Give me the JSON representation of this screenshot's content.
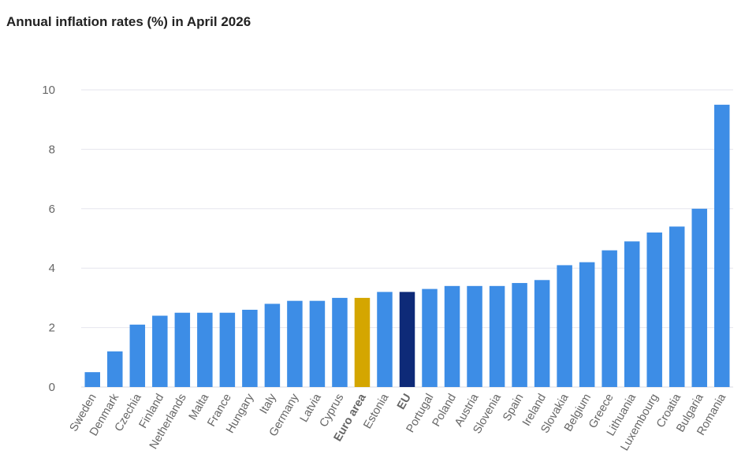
{
  "title": "Annual inflation rates (%) in April 2026",
  "colors": {
    "default": "#3d8de6",
    "euro_area": "#d4a600",
    "eu": "#0e2a78",
    "grid": "#e6e6ee",
    "axis_text": "#666666"
  },
  "chart_data": {
    "type": "bar",
    "title": "Annual inflation rates (%) in April 2026",
    "xlabel": "",
    "ylabel": "",
    "ylim": [
      0,
      10
    ],
    "yticks": [
      0,
      2,
      4,
      6,
      8,
      10
    ],
    "grid": true,
    "categories": [
      "Sweden",
      "Denmark",
      "Czechia",
      "Finland",
      "Netherlands",
      "Malta",
      "France",
      "Hungary",
      "Italy",
      "Germany",
      "Latvia",
      "Cyprus",
      "Euro area",
      "Estonia",
      "EU",
      "Portugal",
      "Poland",
      "Austria",
      "Slovenia",
      "Spain",
      "Ireland",
      "Slovakia",
      "Belgium",
      "Greece",
      "Lithuania",
      "Luxembourg",
      "Croatia",
      "Bulgaria",
      "Romania"
    ],
    "values": [
      0.5,
      1.2,
      2.1,
      2.4,
      2.5,
      2.5,
      2.5,
      2.6,
      2.8,
      2.9,
      2.9,
      3.0,
      3.0,
      3.2,
      3.2,
      3.3,
      3.4,
      3.4,
      3.4,
      3.5,
      3.6,
      4.1,
      4.2,
      4.6,
      4.9,
      5.2,
      5.4,
      6.0,
      9.5
    ],
    "highlighted": {
      "Euro area": "euro_area",
      "EU": "eu"
    },
    "bold_labels": [
      "Euro area",
      "EU"
    ]
  }
}
